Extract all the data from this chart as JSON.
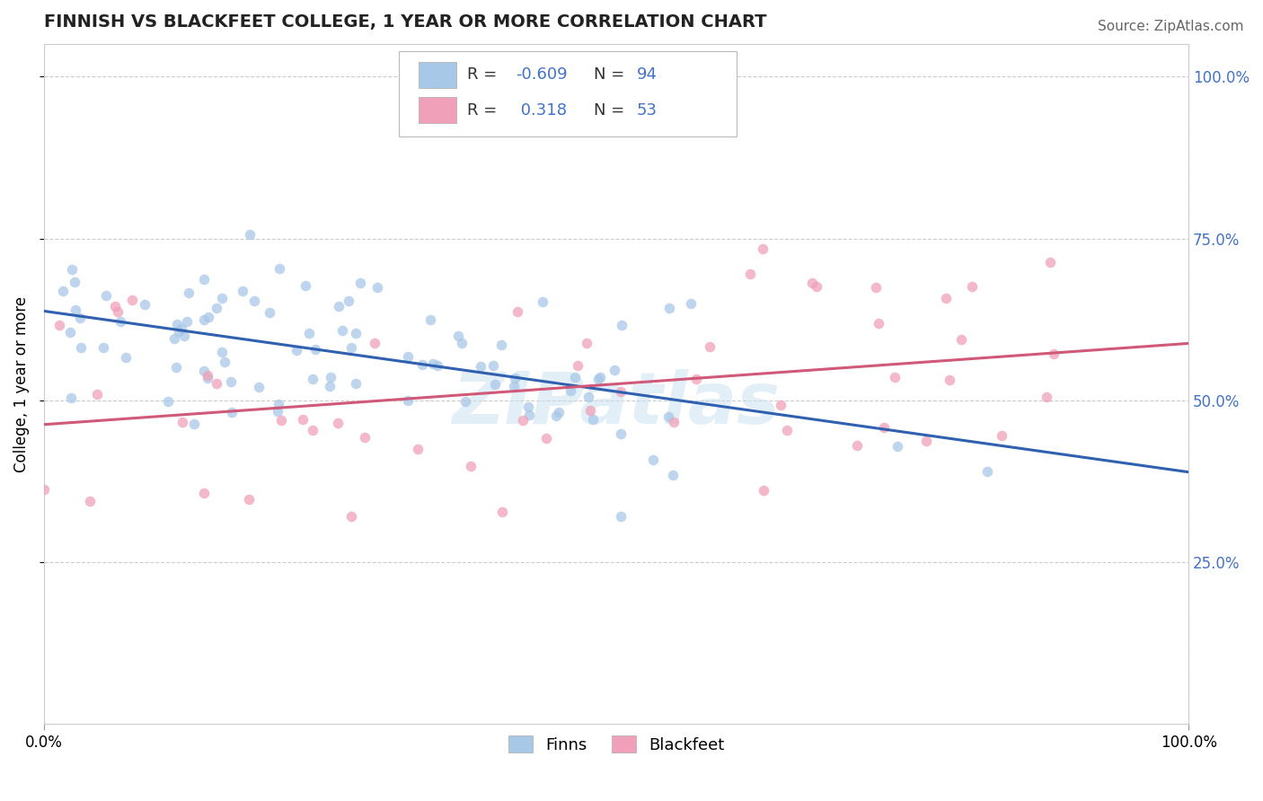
{
  "title": "FINNISH VS BLACKFEET COLLEGE, 1 YEAR OR MORE CORRELATION CHART",
  "source": "Source: ZipAtlas.com",
  "ylabel": "College, 1 year or more",
  "legend_label_1": "Finns",
  "legend_label_2": "Blackfeet",
  "R1": -0.609,
  "N1": 94,
  "R2": 0.318,
  "N2": 53,
  "color_finns": "#A8C8E8",
  "color_blackfeet": "#F0A0B8",
  "line_color_finns": "#3060B0",
  "line_color_blackfeet": "#D05878",
  "watermark": "ZIPatlas",
  "xmin": 0.0,
  "xmax": 1.0,
  "ymin": 0.0,
  "ymax": 1.05,
  "ytick_vals": [
    0.25,
    0.5,
    0.75,
    1.0
  ],
  "xtick_vals": [
    0.0,
    1.0
  ],
  "xtick_labels": [
    "0.0%",
    "100.0%"
  ],
  "ytick_labels": [
    "25.0%",
    "50.0%",
    "75.0%",
    "100.0%"
  ],
  "background_color": "#FFFFFF",
  "grid_color": "#CCCCCC",
  "legend_color_R": "#4472C4",
  "legend_color_text": "#333333",
  "title_fontsize": 14,
  "axis_fontsize": 12,
  "legend_fontsize": 13,
  "source_fontsize": 11,
  "ylabel_fontsize": 12
}
